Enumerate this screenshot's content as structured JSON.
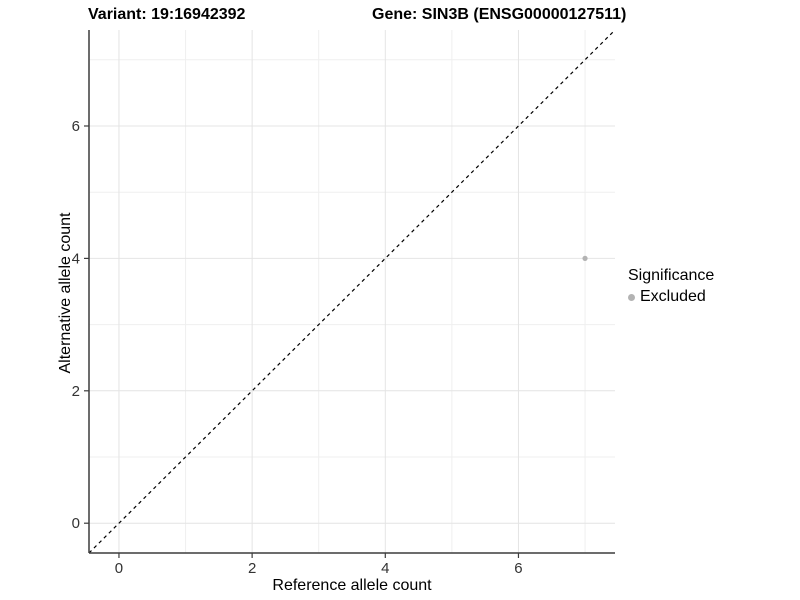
{
  "chart_data": {
    "type": "scatter",
    "title_left": "Variant: 19:16942392",
    "title_right": "Gene: SIN3B (ENSG00000127511)",
    "xlabel": "Reference allele count",
    "ylabel": "Alternative allele count",
    "xlim": [
      -0.45,
      7.45
    ],
    "ylim": [
      -0.45,
      7.45
    ],
    "x_ticks": [
      0,
      2,
      4,
      6
    ],
    "y_ticks": [
      0,
      2,
      4,
      6
    ],
    "x_minor_ticks": [
      1,
      3,
      5,
      7
    ],
    "y_minor_ticks": [
      1,
      3,
      5,
      7
    ],
    "grid": true,
    "identity_line": {
      "style": "dashed",
      "from": -0.45,
      "to": 7.45
    },
    "series": [
      {
        "name": "Excluded",
        "color": "#b3b3b3",
        "points": [
          {
            "x": 7,
            "y": 4
          }
        ]
      }
    ],
    "legend": {
      "title": "Significance",
      "position": "right",
      "items": [
        {
          "label": "Excluded",
          "color": "#b3b3b3"
        }
      ]
    },
    "style": {
      "grid_major_color": "#e4e4e4",
      "grid_minor_color": "#efefef",
      "axis_line_color": "#3c3c3c",
      "tick_label_color": "#333333",
      "identity_line_color": "#000000",
      "panel_background": "#ffffff"
    }
  }
}
